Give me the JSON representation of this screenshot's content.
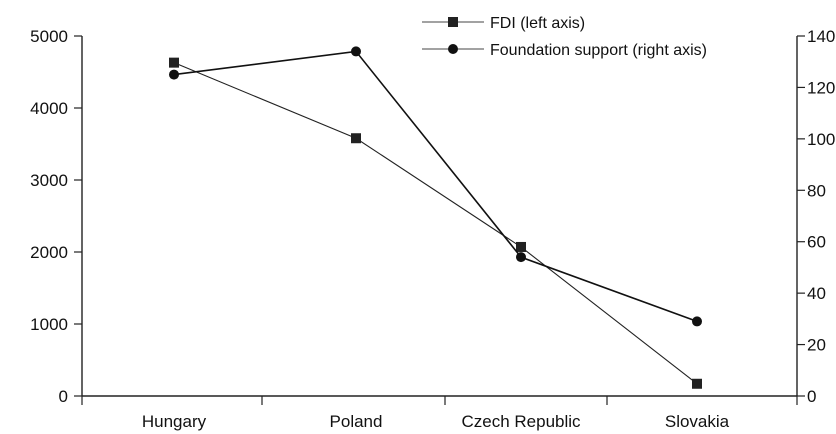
{
  "chart_data": {
    "type": "line",
    "categories": [
      "Hungary",
      "Poland",
      "Czech Republic",
      "Slovakia"
    ],
    "left_axis": {
      "ylim": [
        0,
        5000
      ],
      "ticks": [
        0,
        1000,
        2000,
        3000,
        4000,
        5000
      ]
    },
    "right_axis": {
      "ylim": [
        0,
        140
      ],
      "ticks": [
        0,
        20,
        40,
        60,
        80,
        100,
        120,
        140
      ]
    },
    "series": [
      {
        "name": "FDI (left axis)",
        "axis": "left",
        "marker": "square",
        "color": "#222222",
        "values": [
          4630,
          3580,
          2070,
          170
        ]
      },
      {
        "name": "Foundation support (right axis)",
        "axis": "right",
        "marker": "circle",
        "color": "#111111",
        "values": [
          125,
          134,
          54,
          29
        ]
      }
    ],
    "legend": {
      "placement": "top-right"
    },
    "grid": false
  }
}
